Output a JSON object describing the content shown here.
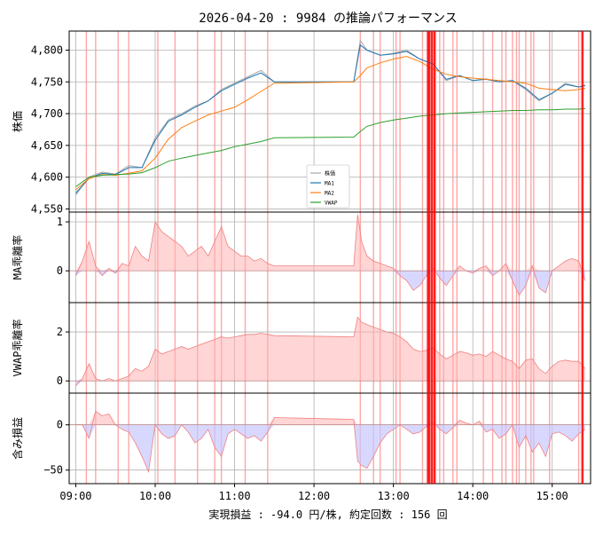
{
  "figure": {
    "title": "2026-04-20 : 9984 の推論パフォーマンス",
    "xlabel": "実現損益 : -94.0 円/株, 約定回数 : 156 回"
  },
  "colors": {
    "price": "#a8a8a8",
    "ma1": "#1f77b4",
    "ma2": "#ff7f0e",
    "vwap": "#2ca02c",
    "pos_fill": "#ffb3b3",
    "pos_line": "#f08080",
    "neg_fill": "#c8c8ff",
    "neg_line": "#7070f0",
    "vline": "#ff0000",
    "grid": "#b0b0b0"
  },
  "chart_data": [
    {
      "type": "line",
      "ylabel": "株価",
      "ylim": [
        4545,
        4830
      ],
      "yticks": [
        4550,
        4600,
        4650,
        4700,
        4750,
        4800
      ],
      "ytick_labels": [
        "4,550",
        "4,600",
        "4,650",
        "4,700",
        "4,750",
        "4,800"
      ],
      "xticks": [
        "09:00",
        "10:00",
        "11:00",
        "12:00",
        "13:00",
        "14:00",
        "15:00"
      ],
      "legend": [
        "株価",
        "MA1",
        "MA2",
        "VWAP"
      ],
      "legend_position": "center",
      "series": [
        {
          "name": "株価",
          "x": [
            "09:00",
            "09:10",
            "09:20",
            "09:30",
            "09:40",
            "09:50",
            "10:00",
            "10:10",
            "10:20",
            "10:30",
            "10:40",
            "10:50",
            "11:00",
            "11:10",
            "11:20",
            "11:30",
            "12:30",
            "12:35",
            "12:40",
            "12:50",
            "13:00",
            "13:10",
            "13:20",
            "13:30",
            "13:40",
            "13:50",
            "14:00",
            "14:10",
            "14:20",
            "14:30",
            "14:40",
            "14:50",
            "15:00",
            "15:10",
            "15:20",
            "15:25"
          ],
          "values": [
            4572,
            4600,
            4608,
            4605,
            4618,
            4615,
            4662,
            4690,
            4700,
            4712,
            4720,
            4738,
            4748,
            4758,
            4768,
            4750,
            4750,
            4815,
            4800,
            4792,
            4795,
            4800,
            4786,
            4778,
            4752,
            4760,
            4752,
            4755,
            4750,
            4752,
            4738,
            4720,
            4732,
            4748,
            4742,
            4745
          ]
        },
        {
          "name": "MA1",
          "x": [
            "09:00",
            "09:10",
            "09:20",
            "09:30",
            "09:40",
            "09:50",
            "10:00",
            "10:10",
            "10:20",
            "10:30",
            "10:40",
            "10:50",
            "11:00",
            "11:10",
            "11:20",
            "11:30",
            "12:30",
            "12:35",
            "12:40",
            "12:50",
            "13:00",
            "13:10",
            "13:20",
            "13:30",
            "13:40",
            "13:50",
            "14:00",
            "14:10",
            "14:20",
            "14:30",
            "14:40",
            "14:50",
            "15:00",
            "15:10",
            "15:20",
            "15:25"
          ],
          "values": [
            4575,
            4598,
            4606,
            4604,
            4615,
            4615,
            4658,
            4688,
            4698,
            4710,
            4720,
            4736,
            4746,
            4756,
            4764,
            4750,
            4750,
            4808,
            4800,
            4792,
            4794,
            4798,
            4786,
            4778,
            4754,
            4760,
            4752,
            4754,
            4750,
            4752,
            4740,
            4722,
            4732,
            4746,
            4742,
            4744
          ]
        },
        {
          "name": "MA2",
          "x": [
            "09:00",
            "09:10",
            "09:20",
            "09:30",
            "09:40",
            "09:50",
            "10:00",
            "10:10",
            "10:20",
            "10:30",
            "10:40",
            "10:50",
            "11:00",
            "11:10",
            "11:20",
            "11:30",
            "12:30",
            "12:35",
            "12:40",
            "12:50",
            "13:00",
            "13:10",
            "13:20",
            "13:30",
            "13:40",
            "13:50",
            "14:00",
            "14:10",
            "14:20",
            "14:30",
            "14:40",
            "14:50",
            "15:00",
            "15:10",
            "15:20",
            "15:25"
          ],
          "values": [
            4580,
            4598,
            4604,
            4603,
            4606,
            4610,
            4630,
            4660,
            4678,
            4688,
            4698,
            4704,
            4710,
            4722,
            4735,
            4748,
            4750,
            4760,
            4772,
            4780,
            4786,
            4790,
            4782,
            4770,
            4762,
            4758,
            4756,
            4754,
            4752,
            4750,
            4748,
            4740,
            4738,
            4736,
            4738,
            4740
          ]
        },
        {
          "name": "VWAP",
          "x": [
            "09:00",
            "09:10",
            "09:20",
            "09:30",
            "09:40",
            "09:50",
            "10:00",
            "10:10",
            "10:20",
            "10:30",
            "10:40",
            "10:50",
            "11:00",
            "11:10",
            "11:20",
            "11:30",
            "12:30",
            "12:35",
            "12:40",
            "12:50",
            "13:00",
            "13:10",
            "13:20",
            "13:30",
            "13:40",
            "13:50",
            "14:00",
            "14:10",
            "14:20",
            "14:30",
            "14:40",
            "14:50",
            "15:00",
            "15:10",
            "15:20",
            "15:25"
          ],
          "values": [
            4585,
            4600,
            4603,
            4604,
            4605,
            4607,
            4615,
            4625,
            4630,
            4634,
            4638,
            4642,
            4648,
            4652,
            4656,
            4662,
            4663,
            4672,
            4680,
            4686,
            4690,
            4693,
            4696,
            4698,
            4700,
            4701,
            4702,
            4703,
            4704,
            4705,
            4705,
            4706,
            4706,
            4707,
            4707,
            4708
          ]
        }
      ]
    },
    {
      "type": "area",
      "ylabel": "MA乖離率",
      "ylim": [
        -0.65,
        1.2
      ],
      "yticks": [
        0,
        1
      ],
      "ytick_labels": [
        "0",
        "1"
      ],
      "series": [
        {
          "name": "MA乖離率",
          "x": [
            "09:00",
            "09:05",
            "09:10",
            "09:15",
            "09:20",
            "09:25",
            "09:30",
            "09:35",
            "09:40",
            "09:45",
            "09:50",
            "09:55",
            "10:00",
            "10:05",
            "10:10",
            "10:15",
            "10:20",
            "10:25",
            "10:30",
            "10:35",
            "10:40",
            "10:45",
            "10:50",
            "10:55",
            "11:00",
            "11:05",
            "11:10",
            "11:15",
            "11:20",
            "11:25",
            "11:30",
            "12:30",
            "12:33",
            "12:36",
            "12:40",
            "12:45",
            "12:50",
            "12:55",
            "13:00",
            "13:05",
            "13:10",
            "13:15",
            "13:20",
            "13:25",
            "13:30",
            "13:35",
            "13:40",
            "13:45",
            "13:50",
            "13:55",
            "14:00",
            "14:05",
            "14:10",
            "14:15",
            "14:20",
            "14:25",
            "14:30",
            "14:35",
            "14:40",
            "14:45",
            "14:50",
            "14:55",
            "15:00",
            "15:05",
            "15:10",
            "15:15",
            "15:20",
            "15:25"
          ],
          "values": [
            -0.1,
            0.2,
            0.6,
            0.1,
            -0.1,
            0.05,
            -0.05,
            0.15,
            0.1,
            0.5,
            0.3,
            0.2,
            1.0,
            0.8,
            0.7,
            0.6,
            0.5,
            0.3,
            0.4,
            0.5,
            0.3,
            0.6,
            0.9,
            0.5,
            0.4,
            0.3,
            0.3,
            0.2,
            0.25,
            0.15,
            0.1,
            0.1,
            1.15,
            0.6,
            0.3,
            0.2,
            0.15,
            0.1,
            0.05,
            -0.1,
            -0.2,
            -0.4,
            -0.3,
            -0.1,
            0.05,
            -0.15,
            -0.3,
            -0.1,
            0.1,
            0.0,
            -0.05,
            0.05,
            0.1,
            -0.1,
            0.0,
            0.15,
            -0.2,
            -0.5,
            -0.3,
            0.1,
            -0.35,
            -0.45,
            0.0,
            0.1,
            0.2,
            0.25,
            0.2,
            -0.2
          ]
        }
      ]
    },
    {
      "type": "area",
      "ylabel": "VWAP乖離率",
      "ylim": [
        -0.5,
        3.2
      ],
      "yticks": [
        0,
        2
      ],
      "ytick_labels": [
        "0",
        "2"
      ],
      "series": [
        {
          "name": "VWAP乖離率",
          "x": [
            "09:00",
            "09:05",
            "09:10",
            "09:15",
            "09:20",
            "09:25",
            "09:30",
            "09:35",
            "09:40",
            "09:45",
            "09:50",
            "09:55",
            "10:00",
            "10:05",
            "10:10",
            "10:15",
            "10:20",
            "10:25",
            "10:30",
            "10:35",
            "10:40",
            "10:45",
            "10:50",
            "10:55",
            "11:00",
            "11:05",
            "11:10",
            "11:15",
            "11:20",
            "11:25",
            "11:30",
            "12:30",
            "12:33",
            "12:36",
            "12:40",
            "12:45",
            "12:50",
            "12:55",
            "13:00",
            "13:05",
            "13:10",
            "13:15",
            "13:20",
            "13:25",
            "13:30",
            "13:35",
            "13:40",
            "13:45",
            "13:50",
            "13:55",
            "14:00",
            "14:05",
            "14:10",
            "14:15",
            "14:20",
            "14:25",
            "14:30",
            "14:35",
            "14:40",
            "14:45",
            "14:50",
            "14:55",
            "15:00",
            "15:05",
            "15:10",
            "15:15",
            "15:20",
            "15:25"
          ],
          "values": [
            -0.2,
            0.1,
            0.7,
            0.1,
            0.0,
            0.1,
            0.0,
            0.1,
            0.2,
            0.5,
            0.4,
            0.6,
            1.3,
            1.1,
            1.2,
            1.3,
            1.4,
            1.3,
            1.4,
            1.5,
            1.6,
            1.7,
            1.8,
            1.75,
            1.8,
            1.85,
            1.9,
            1.9,
            1.95,
            1.9,
            1.85,
            1.8,
            2.6,
            2.4,
            2.3,
            2.2,
            2.1,
            2.0,
            1.95,
            1.8,
            1.6,
            1.3,
            1.2,
            1.25,
            1.35,
            1.1,
            0.9,
            1.05,
            1.2,
            1.15,
            1.05,
            1.1,
            1.0,
            1.2,
            1.05,
            0.9,
            0.8,
            0.5,
            0.85,
            0.9,
            0.5,
            0.3,
            0.6,
            0.8,
            0.85,
            0.8,
            0.8,
            0.5
          ]
        }
      ]
    },
    {
      "type": "area",
      "ylabel": "含み損益",
      "ylim": [
        -65,
        35
      ],
      "yticks": [
        -50,
        0
      ],
      "ytick_labels": [
        "−50",
        "0"
      ],
      "series": [
        {
          "name": "含み損益",
          "x": [
            "09:00",
            "09:05",
            "09:10",
            "09:15",
            "09:20",
            "09:25",
            "09:30",
            "09:35",
            "09:40",
            "09:45",
            "09:50",
            "09:55",
            "10:00",
            "10:05",
            "10:10",
            "10:15",
            "10:20",
            "10:25",
            "10:30",
            "10:35",
            "10:40",
            "10:45",
            "10:50",
            "10:55",
            "11:00",
            "11:05",
            "11:10",
            "11:15",
            "11:20",
            "11:25",
            "11:30",
            "12:30",
            "12:33",
            "12:36",
            "12:40",
            "12:45",
            "12:50",
            "12:55",
            "13:00",
            "13:05",
            "13:10",
            "13:15",
            "13:20",
            "13:25",
            "13:30",
            "13:35",
            "13:40",
            "13:45",
            "13:50",
            "13:55",
            "14:00",
            "14:05",
            "14:10",
            "14:15",
            "14:20",
            "14:25",
            "14:30",
            "14:35",
            "14:40",
            "14:45",
            "14:50",
            "14:55",
            "15:00",
            "15:05",
            "15:10",
            "15:15",
            "15:20",
            "15:25"
          ],
          "values": [
            0,
            0,
            -15,
            15,
            10,
            12,
            0,
            -5,
            -8,
            -20,
            -35,
            -52,
            0,
            -10,
            -15,
            -12,
            0,
            -8,
            -20,
            -15,
            -5,
            -25,
            -35,
            -10,
            -5,
            -10,
            -15,
            -12,
            -18,
            -8,
            8,
            6,
            -40,
            -45,
            -48,
            -35,
            -20,
            -10,
            -5,
            0,
            -5,
            -10,
            -8,
            -2,
            3,
            -5,
            -10,
            -3,
            5,
            2,
            0,
            4,
            -8,
            -5,
            -15,
            -10,
            0,
            -25,
            -12,
            -30,
            -20,
            -35,
            -10,
            -8,
            -12,
            -18,
            -10,
            -5
          ]
        }
      ]
    }
  ]
}
